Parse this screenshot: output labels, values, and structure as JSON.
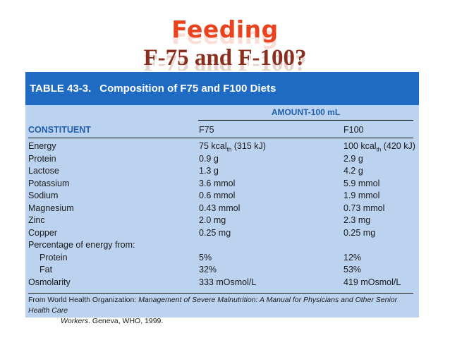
{
  "slide": {
    "title_line1": "Feeding",
    "title_line2": "F-75 and F-100?"
  },
  "table": {
    "number": "TABLE 43-3.",
    "title": "Composition of F75 and F100 Diets",
    "amount_label": "AMOUNT-100 mL",
    "columns": [
      "CONSTITUENT",
      "F75",
      "F100"
    ],
    "rows": [
      {
        "constituent": "Energy",
        "f75": "75 kcal",
        "f75_sub": "th",
        "f75_rest": " (315 kJ)",
        "f100": "100 kcal",
        "f100_sub": "th",
        "f100_rest": " (420 kJ)",
        "indent": false
      },
      {
        "constituent": "Protein",
        "f75": "0.9 g",
        "f100": "2.9 g",
        "indent": false
      },
      {
        "constituent": "Lactose",
        "f75": "1.3 g",
        "f100": "4.2 g",
        "indent": false
      },
      {
        "constituent": "Potassium",
        "f75": "3.6 mmol",
        "f100": "5.9 mmol",
        "indent": false
      },
      {
        "constituent": "Sodium",
        "f75": "0.6 mmol",
        "f100": "1.9 mmol",
        "indent": false
      },
      {
        "constituent": "Magnesium",
        "f75": "0.43 mmol",
        "f100": "0.73 mmol",
        "indent": false
      },
      {
        "constituent": "Zinc",
        "f75": "2.0 mg",
        "f100": "2.3 mg",
        "indent": false
      },
      {
        "constituent": "Copper",
        "f75": "0.25 mg",
        "f100": "0.25 mg",
        "indent": false
      },
      {
        "constituent": "Percentage of energy from:",
        "f75": "",
        "f100": "",
        "indent": false
      },
      {
        "constituent": "Protein",
        "f75": "5%",
        "f100": "12%",
        "indent": true
      },
      {
        "constituent": "Fat",
        "f75": "32%",
        "f100": "53%",
        "indent": true
      },
      {
        "constituent": "Osmolarity",
        "f75": "333 mOsmol/L",
        "f100": "419 mOsmol/L",
        "indent": false
      }
    ],
    "source_prefix": "From World Health Organization: ",
    "source_italic_1": "Management of Severe Malnutrition: A Manual for Physicians and Other Senior Health Care",
    "source_italic_2": "Workers",
    "source_suffix": ". Geneva, WHO, 1999."
  },
  "colors": {
    "title_red": "#e8421f",
    "title_dark": "#8a2f1e",
    "header_blue": "#1f6bc4",
    "table_bg": "#bcd3ef",
    "accent_blue": "#1f5fae"
  }
}
